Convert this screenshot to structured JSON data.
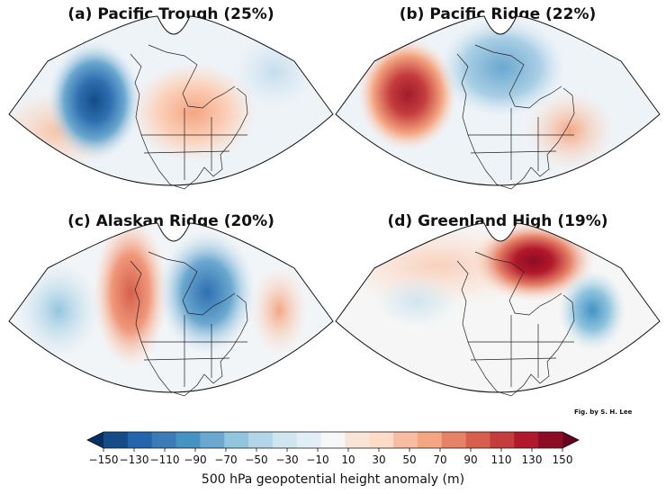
{
  "panels": [
    {
      "title": "(a) Pacific Trough (25%)"
    },
    {
      "title": "(b) Pacific Ridge (22%)"
    },
    {
      "title": "(c) Alaskan Ridge (20%)"
    },
    {
      "title": "(d) Greenland High (19%)"
    }
  ],
  "credit": "Fig. by S. H. Lee",
  "colorbar": {
    "label": "500 hPa geopotential height anomaly (m)",
    "ticks": [
      "−150",
      "−130",
      "−110",
      "−90",
      "−70",
      "−50",
      "−30",
      "−10",
      "10",
      "30",
      "50",
      "70",
      "90",
      "110",
      "130",
      "150"
    ],
    "colors": [
      "#053061",
      "#134c87",
      "#2166ac",
      "#3a7cb8",
      "#4393c3",
      "#6ba8d0",
      "#92c5de",
      "#b2d6e8",
      "#d1e5f0",
      "#e2eef6",
      "#f7f7f7",
      "#f9e4d8",
      "#fddbc7",
      "#f8bca2",
      "#f4a582",
      "#e58268",
      "#d6604d",
      "#c43c3c",
      "#b2182b",
      "#8c0c25",
      "#67001f"
    ]
  }
}
